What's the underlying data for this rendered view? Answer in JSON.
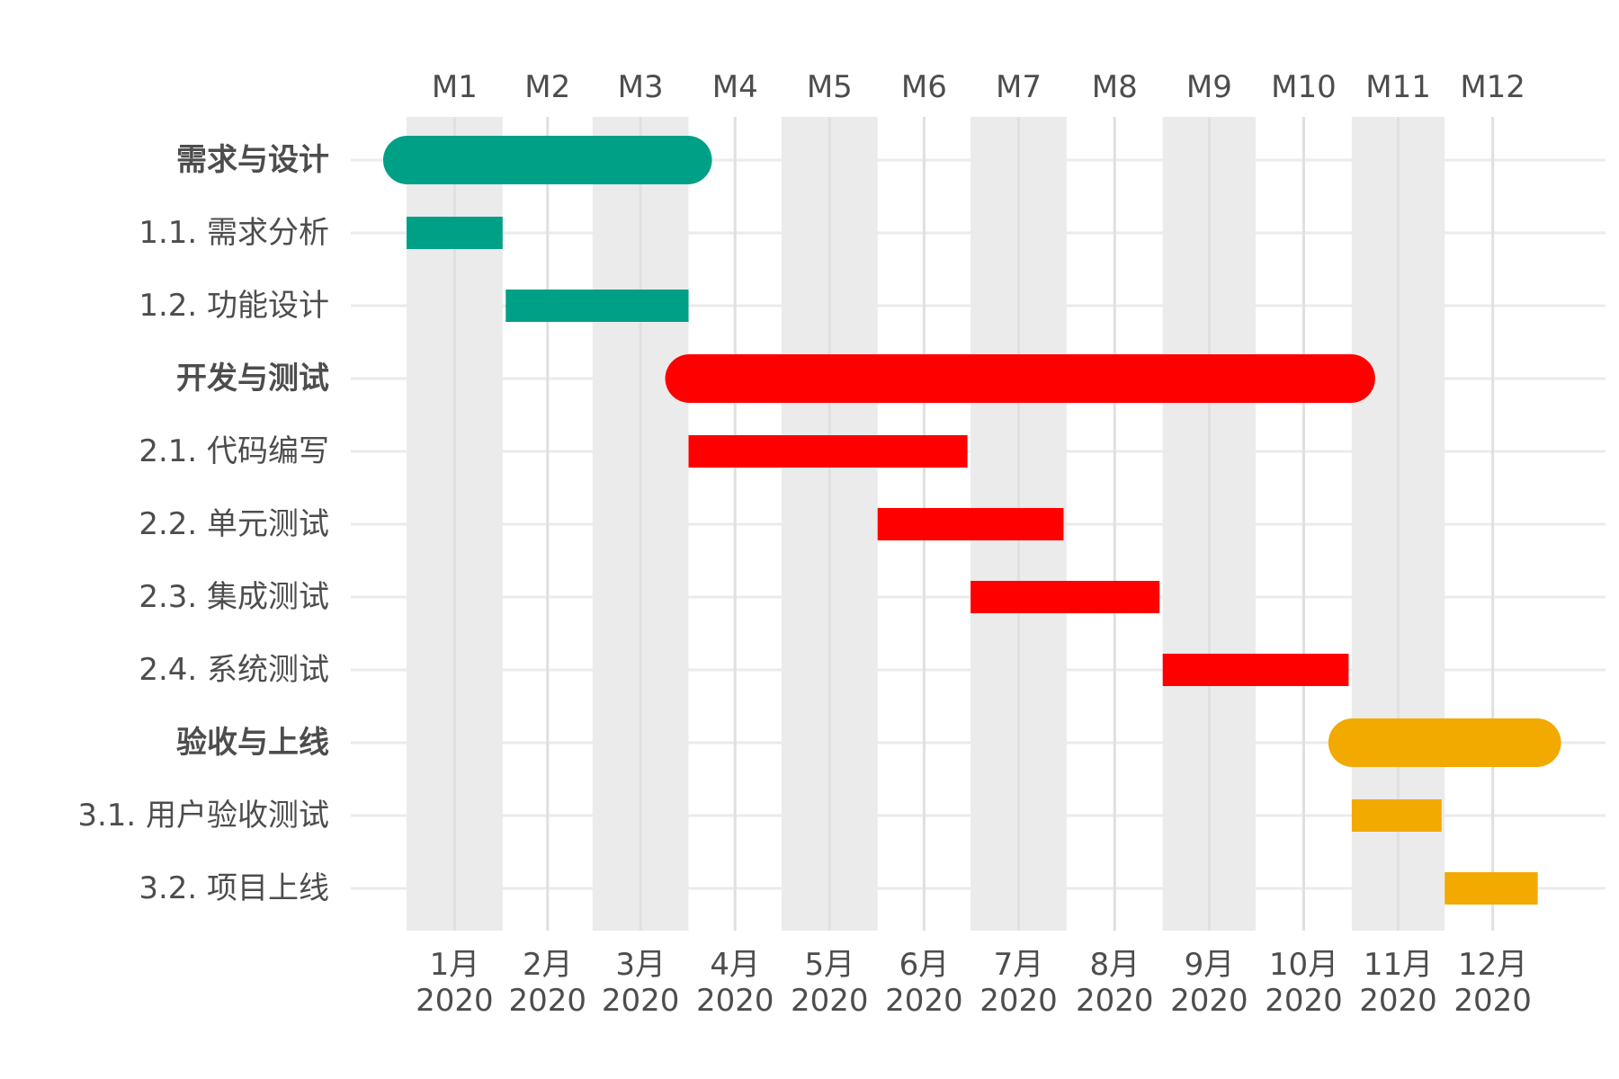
{
  "chart_data": {
    "type": "gantt",
    "title": "",
    "xlabel": "",
    "ylabel": "",
    "top_axis_labels": [
      "M1",
      "M2",
      "M3",
      "M4",
      "M5",
      "M6",
      "M7",
      "M8",
      "M9",
      "M10",
      "M11",
      "M12"
    ],
    "bottom_axis_labels": [
      {
        "month": "1月",
        "year": "2020"
      },
      {
        "month": "2月",
        "year": "2020"
      },
      {
        "month": "3月",
        "year": "2020"
      },
      {
        "month": "4月",
        "year": "2020"
      },
      {
        "month": "5月",
        "year": "2020"
      },
      {
        "month": "6月",
        "year": "2020"
      },
      {
        "month": "7月",
        "year": "2020"
      },
      {
        "month": "8月",
        "year": "2020"
      },
      {
        "month": "9月",
        "year": "2020"
      },
      {
        "month": "10月",
        "year": "2020"
      },
      {
        "month": "11月",
        "year": "2020"
      },
      {
        "month": "12月",
        "year": "2020"
      }
    ],
    "shaded_months": [
      "2020-01",
      "2020-03",
      "2020-05",
      "2020-07",
      "2020-09",
      "2020-11"
    ],
    "tasks": [
      {
        "label": "需求与设计",
        "group": true,
        "start": "2020-01-01",
        "end": "2020-04-01",
        "color": "#00a087"
      },
      {
        "label": "1.1. 需求分析",
        "group": false,
        "start": "2020-01-01",
        "end": "2020-02-01",
        "color": "#00a087"
      },
      {
        "label": "1.2. 功能设计",
        "group": false,
        "start": "2020-02-02",
        "end": "2020-04-01",
        "color": "#00a087"
      },
      {
        "label": "开发与测试",
        "group": true,
        "start": "2020-04-01",
        "end": "2020-11-01",
        "color": "#ff0000"
      },
      {
        "label": "2.1. 代码编写",
        "group": false,
        "start": "2020-04-01",
        "end": "2020-06-30",
        "color": "#ff0000"
      },
      {
        "label": "2.2. 单元测试",
        "group": false,
        "start": "2020-06-01",
        "end": "2020-07-31",
        "color": "#ff0000"
      },
      {
        "label": "2.3. 集成测试",
        "group": false,
        "start": "2020-07-01",
        "end": "2020-08-31",
        "color": "#ff0000"
      },
      {
        "label": "2.4. 系统测试",
        "group": false,
        "start": "2020-09-01",
        "end": "2020-10-31",
        "color": "#ff0000"
      },
      {
        "label": "验收与上线",
        "group": true,
        "start": "2020-11-01",
        "end": "2020-12-31",
        "color": "#f2a900"
      },
      {
        "label": "3.1. 用户验收测试",
        "group": false,
        "start": "2020-11-01",
        "end": "2020-11-30",
        "color": "#f2a900"
      },
      {
        "label": "3.2. 项目上线",
        "group": false,
        "start": "2020-12-01",
        "end": "2020-12-31",
        "color": "#f2a900"
      }
    ]
  }
}
